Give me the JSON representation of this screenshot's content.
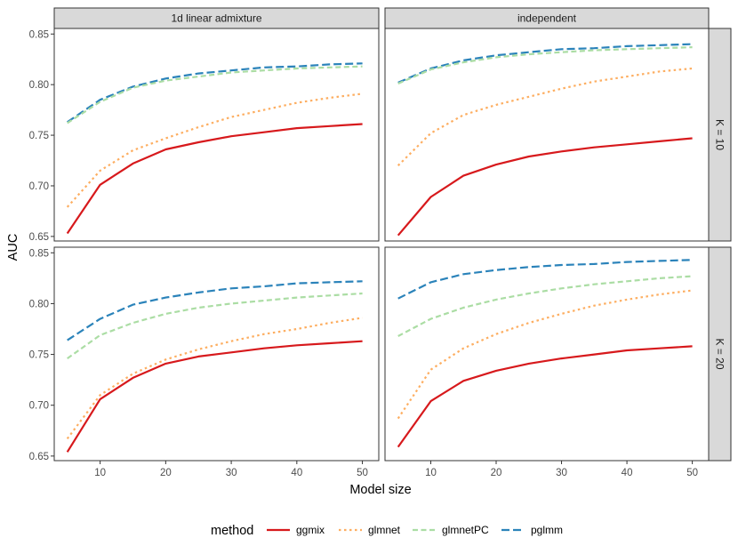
{
  "chart_data": {
    "type": "line",
    "xlabel": "Model size",
    "ylabel": "AUC",
    "x": [
      5,
      10,
      15,
      20,
      25,
      30,
      35,
      40,
      45,
      50
    ],
    "xticks": [
      10,
      20,
      30,
      40,
      50
    ],
    "xlim": [
      3,
      52.5
    ],
    "yticks": [
      0.65,
      0.7,
      0.75,
      0.8,
      0.85
    ],
    "ytick_labels": [
      "0.65",
      "0.70",
      "0.75",
      "0.80",
      "0.85"
    ],
    "ylim": [
      0.6455,
      0.8555
    ],
    "grid": false,
    "legend_position": "bottom",
    "legend_title": "method",
    "col_facets": [
      "1d linear admixture",
      "independent"
    ],
    "row_facets": [
      "K = 10",
      "K = 20"
    ],
    "methods": [
      {
        "name": "ggmix",
        "color": "#D7191C",
        "dash": "solid"
      },
      {
        "name": "glmnet",
        "color": "#FDAE61",
        "dash": "dotted"
      },
      {
        "name": "glmnetPC",
        "color": "#ABDDA4",
        "dash": "dashed"
      },
      {
        "name": "pglmm",
        "color": "#2B83BA",
        "dash": "longdash"
      }
    ],
    "panels": [
      {
        "row": "K = 10",
        "col": "1d linear admixture",
        "series": [
          {
            "name": "ggmix",
            "values": [
              0.653,
              0.701,
              0.722,
              0.736,
              0.743,
              0.749,
              0.753,
              0.757,
              0.759,
              0.761
            ]
          },
          {
            "name": "glmnet",
            "values": [
              0.679,
              0.715,
              0.735,
              0.747,
              0.758,
              0.768,
              0.775,
              0.782,
              0.787,
              0.791
            ]
          },
          {
            "name": "glmnetPC",
            "values": [
              0.762,
              0.783,
              0.797,
              0.804,
              0.808,
              0.812,
              0.814,
              0.816,
              0.817,
              0.818
            ]
          },
          {
            "name": "pglmm",
            "values": [
              0.763,
              0.785,
              0.798,
              0.806,
              0.811,
              0.814,
              0.817,
              0.818,
              0.82,
              0.821
            ]
          }
        ]
      },
      {
        "row": "K = 10",
        "col": "independent",
        "series": [
          {
            "name": "ggmix",
            "values": [
              0.651,
              0.689,
              0.71,
              0.721,
              0.729,
              0.734,
              0.738,
              0.741,
              0.744,
              0.747
            ]
          },
          {
            "name": "glmnet",
            "values": [
              0.72,
              0.752,
              0.77,
              0.78,
              0.788,
              0.796,
              0.803,
              0.808,
              0.813,
              0.816
            ]
          },
          {
            "name": "glmnetPC",
            "values": [
              0.801,
              0.815,
              0.822,
              0.827,
              0.83,
              0.832,
              0.834,
              0.835,
              0.836,
              0.837
            ]
          },
          {
            "name": "pglmm",
            "values": [
              0.802,
              0.816,
              0.824,
              0.829,
              0.832,
              0.835,
              0.836,
              0.838,
              0.839,
              0.84
            ]
          }
        ]
      },
      {
        "row": "K = 20",
        "col": "1d linear admixture",
        "series": [
          {
            "name": "ggmix",
            "values": [
              0.654,
              0.706,
              0.727,
              0.741,
              0.748,
              0.752,
              0.756,
              0.759,
              0.761,
              0.763
            ]
          },
          {
            "name": "glmnet",
            "values": [
              0.667,
              0.71,
              0.731,
              0.745,
              0.755,
              0.763,
              0.77,
              0.775,
              0.781,
              0.786
            ]
          },
          {
            "name": "glmnetPC",
            "values": [
              0.746,
              0.769,
              0.781,
              0.79,
              0.796,
              0.8,
              0.803,
              0.806,
              0.808,
              0.81
            ]
          },
          {
            "name": "pglmm",
            "values": [
              0.764,
              0.785,
              0.799,
              0.806,
              0.811,
              0.815,
              0.817,
              0.82,
              0.821,
              0.822
            ]
          }
        ]
      },
      {
        "row": "K = 20",
        "col": "independent",
        "series": [
          {
            "name": "ggmix",
            "values": [
              0.659,
              0.704,
              0.724,
              0.734,
              0.741,
              0.746,
              0.75,
              0.754,
              0.756,
              0.758
            ]
          },
          {
            "name": "glmnet",
            "values": [
              0.687,
              0.735,
              0.756,
              0.77,
              0.781,
              0.79,
              0.798,
              0.804,
              0.809,
              0.813
            ]
          },
          {
            "name": "glmnetPC",
            "values": [
              0.768,
              0.785,
              0.796,
              0.804,
              0.81,
              0.815,
              0.819,
              0.822,
              0.825,
              0.827
            ]
          },
          {
            "name": "pglmm",
            "values": [
              0.805,
              0.821,
              0.829,
              0.833,
              0.836,
              0.838,
              0.839,
              0.841,
              0.842,
              0.843
            ]
          }
        ]
      }
    ]
  }
}
